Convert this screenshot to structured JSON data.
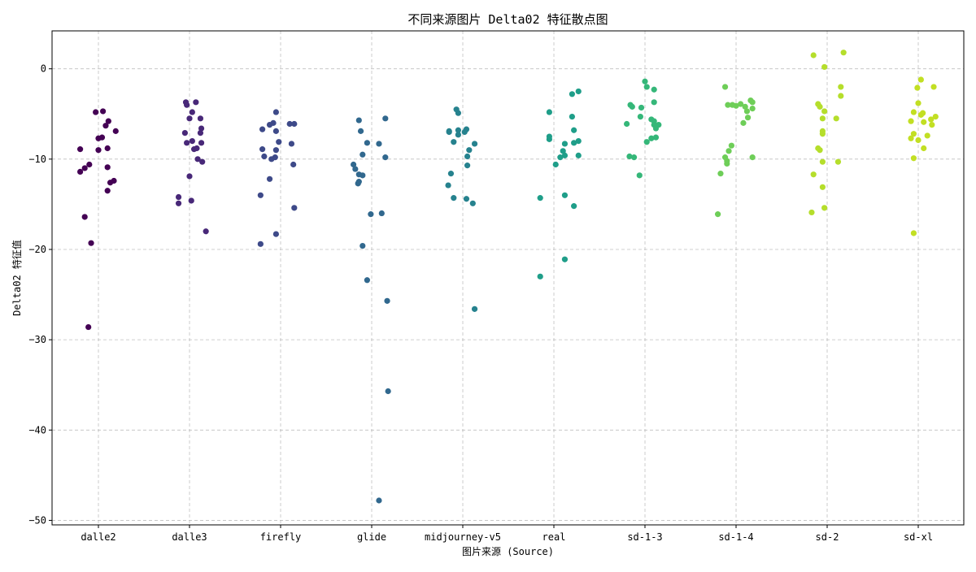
{
  "chart_data": {
    "type": "scatter",
    "title": "不同来源图片 Delta02 特征散点图",
    "xlabel": "图片来源 (Source)",
    "ylabel": "Delta02 特征值",
    "ylim": [
      -50.5,
      4.2
    ],
    "yticks": [
      0,
      -10,
      -20,
      -30,
      -40,
      -50
    ],
    "ytick_labels": [
      "0",
      "−10",
      "−20",
      "−30",
      "−40",
      "−50"
    ],
    "grid": true,
    "categories": [
      "dalle2",
      "dalle3",
      "firefly",
      "glide",
      "midjourney-v5",
      "real",
      "sd-1-3",
      "sd-1-4",
      "sd-2",
      "sd-xl"
    ],
    "series": [
      {
        "category": "dalle2",
        "color": "#440154",
        "points": [
          [
            -0.2,
            -8.9
          ],
          [
            -0.2,
            -11.4
          ],
          [
            0.1,
            -10.9
          ],
          [
            -0.1,
            -10.6
          ],
          [
            -0.15,
            -11.0
          ],
          [
            0.05,
            -4.7
          ],
          [
            -0.03,
            -4.8
          ],
          [
            0.0,
            -7.7
          ],
          [
            0.1,
            -8.8
          ],
          [
            0.08,
            -6.3
          ],
          [
            0.11,
            -5.8
          ],
          [
            0.19,
            -6.9
          ],
          [
            0.04,
            -7.6
          ],
          [
            0.0,
            -9.0
          ],
          [
            0.13,
            -12.6
          ],
          [
            0.17,
            -12.4
          ],
          [
            0.1,
            -13.5
          ],
          [
            -0.15,
            -16.4
          ],
          [
            -0.08,
            -19.3
          ],
          [
            -0.11,
            -28.6
          ]
        ]
      },
      {
        "category": "dalle3",
        "color": "#482878",
        "points": [
          [
            -0.04,
            -3.7
          ],
          [
            -0.03,
            -4.0
          ],
          [
            0.07,
            -3.7
          ],
          [
            0.03,
            -4.8
          ],
          [
            0.0,
            -5.5
          ],
          [
            0.12,
            -5.5
          ],
          [
            -0.05,
            -7.1
          ],
          [
            0.03,
            -8.0
          ],
          [
            0.13,
            -6.6
          ],
          [
            0.12,
            -7.1
          ],
          [
            0.08,
            -8.8
          ],
          [
            0.05,
            -8.9
          ],
          [
            -0.03,
            -8.2
          ],
          [
            0.13,
            -8.2
          ],
          [
            0.09,
            -10.0
          ],
          [
            0.14,
            -10.3
          ],
          [
            0.0,
            -11.9
          ],
          [
            -0.12,
            -14.2
          ],
          [
            -0.12,
            -14.9
          ],
          [
            0.02,
            -14.6
          ],
          [
            0.18,
            -18.0
          ]
        ]
      },
      {
        "category": "firefly",
        "color": "#3e4a89",
        "points": [
          [
            -0.05,
            -4.8
          ],
          [
            -0.2,
            -6.7
          ],
          [
            -0.08,
            -6.0
          ],
          [
            -0.12,
            -6.2
          ],
          [
            -0.05,
            -6.9
          ],
          [
            0.1,
            -6.1
          ],
          [
            0.15,
            -6.1
          ],
          [
            -0.02,
            -8.1
          ],
          [
            0.12,
            -8.3
          ],
          [
            -0.05,
            -9.0
          ],
          [
            -0.2,
            -8.9
          ],
          [
            -0.18,
            -9.7
          ],
          [
            -0.06,
            -9.8
          ],
          [
            -0.1,
            -10.0
          ],
          [
            0.14,
            -10.6
          ],
          [
            -0.12,
            -12.2
          ],
          [
            -0.22,
            -14.0
          ],
          [
            0.15,
            -15.4
          ],
          [
            -0.05,
            -18.3
          ],
          [
            -0.22,
            -19.4
          ]
        ]
      },
      {
        "category": "glide",
        "color": "#31688e",
        "points": [
          [
            -0.14,
            -5.7
          ],
          [
            0.15,
            -5.5
          ],
          [
            -0.12,
            -6.9
          ],
          [
            -0.05,
            -8.2
          ],
          [
            0.08,
            -8.3
          ],
          [
            -0.1,
            -9.5
          ],
          [
            0.15,
            -9.8
          ],
          [
            -0.2,
            -10.6
          ],
          [
            -0.18,
            -11.1
          ],
          [
            -0.14,
            -11.7
          ],
          [
            -0.1,
            -11.8
          ],
          [
            -0.14,
            -12.5
          ],
          [
            -0.15,
            -12.7
          ],
          [
            -0.01,
            -16.1
          ],
          [
            0.11,
            -16.0
          ],
          [
            -0.1,
            -19.6
          ],
          [
            -0.05,
            -23.4
          ],
          [
            0.17,
            -25.7
          ],
          [
            0.18,
            -35.7
          ],
          [
            0.08,
            -47.8
          ]
        ]
      },
      {
        "category": "midjourney-v5",
        "color": "#26828e",
        "points": [
          [
            -0.07,
            -4.5
          ],
          [
            -0.05,
            -4.9
          ],
          [
            -0.15,
            -6.9
          ],
          [
            -0.05,
            -6.8
          ],
          [
            0.04,
            -6.7
          ],
          [
            -0.15,
            -7.0
          ],
          [
            -0.05,
            -7.3
          ],
          [
            0.02,
            -7.0
          ],
          [
            -0.1,
            -8.1
          ],
          [
            0.13,
            -8.3
          ],
          [
            0.07,
            -9.0
          ],
          [
            0.05,
            -9.7
          ],
          [
            0.05,
            -10.7
          ],
          [
            -0.13,
            -11.6
          ],
          [
            -0.16,
            -12.9
          ],
          [
            -0.1,
            -14.3
          ],
          [
            0.04,
            -14.4
          ],
          [
            0.11,
            -14.9
          ],
          [
            0.13,
            -26.6
          ]
        ]
      },
      {
        "category": "real",
        "color": "#1f9e89",
        "points": [
          [
            0.27,
            -2.5
          ],
          [
            0.2,
            -2.8
          ],
          [
            0.2,
            -5.3
          ],
          [
            -0.05,
            -4.8
          ],
          [
            0.22,
            -6.8
          ],
          [
            -0.05,
            -7.8
          ],
          [
            -0.05,
            -7.5
          ],
          [
            0.27,
            -8.0
          ],
          [
            0.22,
            -8.2
          ],
          [
            0.12,
            -8.3
          ],
          [
            0.1,
            -9.1
          ],
          [
            0.12,
            -9.6
          ],
          [
            0.07,
            -9.8
          ],
          [
            0.27,
            -9.6
          ],
          [
            0.02,
            -10.6
          ],
          [
            0.12,
            -14.0
          ],
          [
            -0.15,
            -14.3
          ],
          [
            0.22,
            -15.2
          ],
          [
            0.12,
            -21.1
          ],
          [
            -0.15,
            -23.0
          ]
        ]
      },
      {
        "category": "sd-1-3",
        "color": "#35b779",
        "points": [
          [
            0.0,
            -1.4
          ],
          [
            0.02,
            -2.0
          ],
          [
            0.1,
            -2.3
          ],
          [
            0.1,
            -3.7
          ],
          [
            -0.16,
            -4.0
          ],
          [
            -0.14,
            -4.2
          ],
          [
            -0.04,
            -4.3
          ],
          [
            -0.05,
            -5.3
          ],
          [
            0.07,
            -5.6
          ],
          [
            0.1,
            -5.8
          ],
          [
            -0.2,
            -6.1
          ],
          [
            0.1,
            -6.2
          ],
          [
            0.15,
            -6.2
          ],
          [
            0.12,
            -6.6
          ],
          [
            0.07,
            -7.7
          ],
          [
            0.02,
            -8.1
          ],
          [
            0.12,
            -7.6
          ],
          [
            -0.17,
            -9.7
          ],
          [
            -0.12,
            -9.8
          ],
          [
            -0.06,
            -11.8
          ]
        ]
      },
      {
        "category": "sd-1-4",
        "color": "#6ece58",
        "points": [
          [
            -0.12,
            -2.0
          ],
          [
            0.16,
            -3.5
          ],
          [
            0.18,
            -3.7
          ],
          [
            -0.09,
            -4.0
          ],
          [
            -0.04,
            -4.0
          ],
          [
            0.0,
            -4.1
          ],
          [
            0.05,
            -3.9
          ],
          [
            0.1,
            -4.2
          ],
          [
            0.18,
            -4.4
          ],
          [
            0.12,
            -4.7
          ],
          [
            0.13,
            -5.4
          ],
          [
            0.08,
            -6.0
          ],
          [
            -0.05,
            -8.5
          ],
          [
            -0.08,
            -9.1
          ],
          [
            -0.12,
            -9.8
          ],
          [
            -0.1,
            -10.2
          ],
          [
            0.18,
            -9.8
          ],
          [
            -0.1,
            -10.5
          ],
          [
            -0.17,
            -11.6
          ],
          [
            -0.2,
            -16.1
          ]
        ]
      },
      {
        "category": "sd-2",
        "color": "#b5de2b",
        "points": [
          [
            -0.15,
            1.5
          ],
          [
            0.18,
            1.8
          ],
          [
            -0.03,
            0.2
          ],
          [
            0.15,
            -2.0
          ],
          [
            0.15,
            -3.0
          ],
          [
            -0.1,
            -3.9
          ],
          [
            -0.08,
            -4.2
          ],
          [
            -0.03,
            -4.7
          ],
          [
            -0.05,
            -5.5
          ],
          [
            0.1,
            -5.5
          ],
          [
            -0.05,
            -6.9
          ],
          [
            -0.05,
            -7.2
          ],
          [
            -0.1,
            -8.8
          ],
          [
            -0.08,
            -9.0
          ],
          [
            -0.05,
            -10.3
          ],
          [
            0.12,
            -10.3
          ],
          [
            -0.15,
            -11.7
          ],
          [
            -0.05,
            -13.1
          ],
          [
            -0.03,
            -15.4
          ],
          [
            -0.17,
            -15.9
          ]
        ]
      },
      {
        "category": "sd-xl",
        "color": "#c2df23",
        "points": [
          [
            0.03,
            -1.2
          ],
          [
            -0.01,
            -2.1
          ],
          [
            0.17,
            -2.0
          ],
          [
            0.0,
            -3.8
          ],
          [
            -0.05,
            -4.8
          ],
          [
            0.03,
            -5.1
          ],
          [
            0.05,
            -4.9
          ],
          [
            0.19,
            -5.3
          ],
          [
            0.14,
            -5.6
          ],
          [
            -0.08,
            -5.8
          ],
          [
            0.06,
            -5.9
          ],
          [
            0.15,
            -6.2
          ],
          [
            -0.05,
            -7.2
          ],
          [
            0.1,
            -7.4
          ],
          [
            -0.08,
            -7.7
          ],
          [
            0.0,
            -7.9
          ],
          [
            0.06,
            -8.8
          ],
          [
            -0.05,
            -9.9
          ],
          [
            -0.05,
            -18.2
          ]
        ]
      }
    ]
  }
}
